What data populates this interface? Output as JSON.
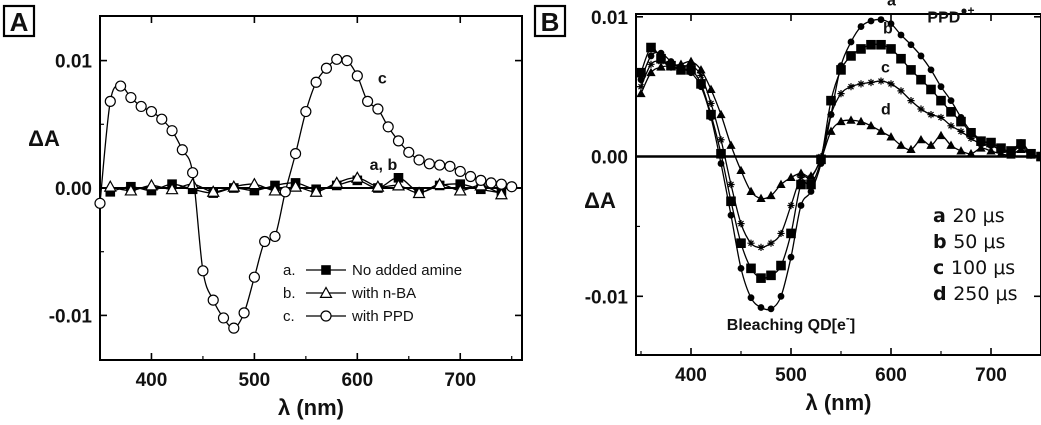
{
  "chart_data": [
    {
      "type": "line",
      "panel_label": "A",
      "xlabel": "λ (nm)",
      "ylabel": "ΔA",
      "xlim": [
        350,
        760
      ],
      "ylim": [
        -0.0135,
        0.0135
      ],
      "x_ticks": [
        400,
        500,
        600,
        700
      ],
      "x_tick_labels": [
        "400",
        "500",
        "600",
        "700"
      ],
      "y_ticks": [
        -0.01,
        0,
        0.01
      ],
      "y_tick_labels": [
        "-0.01",
        "0.00",
        "0.01"
      ],
      "series": [
        {
          "name": "No added amine",
          "legend_letter": "a.",
          "marker": "filled-square",
          "x": [
            360,
            380,
            400,
            420,
            440,
            460,
            480,
            500,
            520,
            540,
            560,
            580,
            600,
            620,
            640,
            660,
            680,
            700,
            720,
            740
          ],
          "y": [
            -0.0003,
            0.0001,
            -0.0002,
            0.0003,
            -0.0001,
            -0.0004,
            0.0,
            -0.0002,
            0.0002,
            0.0004,
            -0.0001,
            0.0002,
            0.0006,
            0.0,
            0.0008,
            -0.0003,
            0.0002,
            0.0003,
            -0.0001,
            -0.0004
          ]
        },
        {
          "name": "with n-BA",
          "legend_letter": "b.",
          "marker": "open-triangle",
          "x": [
            360,
            380,
            400,
            420,
            440,
            460,
            480,
            500,
            520,
            540,
            560,
            580,
            600,
            620,
            640,
            660,
            680,
            700,
            720,
            740
          ],
          "y": [
            0.0001,
            -0.0002,
            0.0002,
            -0.0001,
            0.0003,
            -0.0003,
            0.0001,
            0.0003,
            -0.0002,
            0.0001,
            -0.0003,
            0.0004,
            0.0008,
            0.0001,
            0.0002,
            -0.0004,
            0.0003,
            -0.0002,
            0.0002,
            -0.0005
          ]
        },
        {
          "name": "with PPD",
          "legend_letter": "c.",
          "marker": "open-circle",
          "x": [
            350,
            360,
            370,
            380,
            390,
            400,
            410,
            420,
            430,
            440,
            450,
            460,
            470,
            480,
            490,
            500,
            510,
            520,
            530,
            540,
            550,
            560,
            570,
            580,
            590,
            600,
            610,
            620,
            630,
            640,
            650,
            660,
            670,
            680,
            690,
            700,
            710,
            720,
            730,
            740,
            750
          ],
          "y": [
            -0.0012,
            0.0068,
            0.008,
            0.0071,
            0.0064,
            0.006,
            0.0054,
            0.0045,
            0.003,
            0.0012,
            -0.0065,
            -0.0088,
            -0.0102,
            -0.011,
            -0.0098,
            -0.007,
            -0.0042,
            -0.0038,
            -0.0003,
            0.0027,
            0.006,
            0.0083,
            0.0094,
            0.0101,
            0.01,
            0.0088,
            0.0068,
            0.0062,
            0.0048,
            0.0037,
            0.0028,
            0.0022,
            0.0019,
            0.0018,
            0.0017,
            0.0013,
            0.0009,
            0.0006,
            0.0004,
            0.0003,
            0.0001
          ]
        }
      ],
      "annotations": [
        {
          "text": "c",
          "x": 620,
          "y": 0.0082
        },
        {
          "text": "a, b",
          "x": 612,
          "y": 0.0014
        }
      ],
      "legend_placement": "bottom-right"
    },
    {
      "type": "line",
      "panel_label": "B",
      "xlabel": "λ (nm)",
      "ylabel": "ΔA",
      "xlim": [
        345,
        750
      ],
      "ylim": [
        -0.0142,
        0.0102
      ],
      "x_ticks": [
        400,
        500,
        600,
        700
      ],
      "x_tick_labels": [
        "400",
        "500",
        "600",
        "700"
      ],
      "y_ticks": [
        -0.01,
        0,
        0.01
      ],
      "y_tick_labels": [
        "-0.01",
        "0.00",
        "0.01"
      ],
      "series": [
        {
          "name": "20 μs",
          "legend_letter": "a",
          "marker": "filled-circle",
          "x": [
            350,
            360,
            370,
            380,
            390,
            400,
            410,
            420,
            430,
            440,
            450,
            460,
            470,
            480,
            490,
            500,
            510,
            520,
            530,
            540,
            550,
            560,
            570,
            580,
            590,
            600,
            610,
            620,
            630,
            640,
            650,
            660,
            670,
            680,
            690,
            700,
            710,
            720,
            730,
            740,
            750
          ],
          "y": [
            0.0055,
            0.0072,
            0.0074,
            0.0068,
            0.0063,
            0.006,
            0.005,
            0.0028,
            -0.0005,
            -0.0042,
            -0.008,
            -0.0101,
            -0.0108,
            -0.0109,
            -0.01,
            -0.0072,
            -0.0035,
            -0.0025,
            -0.0005,
            0.003,
            0.0065,
            0.0082,
            0.0093,
            0.0097,
            0.0098,
            0.0095,
            0.0087,
            0.008,
            0.0072,
            0.0062,
            0.005,
            0.004,
            0.0028,
            0.0018,
            0.0012,
            0.0008,
            0.0005,
            0.0003,
            0.001,
            0.0002,
            0.0
          ]
        },
        {
          "name": "50 μs",
          "legend_letter": "b",
          "marker": "filled-square",
          "x": [
            350,
            360,
            370,
            380,
            390,
            400,
            410,
            420,
            430,
            440,
            450,
            460,
            470,
            480,
            490,
            500,
            510,
            520,
            530,
            540,
            550,
            560,
            570,
            580,
            590,
            600,
            610,
            620,
            630,
            640,
            650,
            660,
            670,
            680,
            690,
            700,
            710,
            720,
            730,
            740,
            750
          ],
          "y": [
            0.006,
            0.0078,
            0.007,
            0.0065,
            0.0062,
            0.0062,
            0.0052,
            0.003,
            0.0002,
            -0.0032,
            -0.0062,
            -0.008,
            -0.0087,
            -0.0085,
            -0.0078,
            -0.0055,
            -0.002,
            -0.002,
            -0.0002,
            0.004,
            0.0062,
            0.0072,
            0.0077,
            0.008,
            0.008,
            0.0077,
            0.007,
            0.0062,
            0.0055,
            0.0048,
            0.004,
            0.0032,
            0.0025,
            0.0017,
            0.0011,
            0.001,
            0.0006,
            0.0004,
            0.0009,
            0.0002,
            0.0
          ]
        },
        {
          "name": "100 μs",
          "legend_letter": "c",
          "marker": "star",
          "x": [
            350,
            360,
            370,
            380,
            390,
            400,
            410,
            420,
            430,
            440,
            450,
            460,
            470,
            480,
            490,
            500,
            510,
            520,
            530,
            540,
            550,
            560,
            570,
            580,
            590,
            600,
            610,
            620,
            630,
            640,
            650,
            660,
            670,
            680,
            690,
            700,
            710,
            720,
            730,
            740,
            750
          ],
          "y": [
            0.005,
            0.0066,
            0.0068,
            0.0064,
            0.0064,
            0.0065,
            0.0058,
            0.0038,
            0.0012,
            -0.002,
            -0.0048,
            -0.0062,
            -0.0065,
            -0.0062,
            -0.0055,
            -0.0035,
            -0.0015,
            -0.0015,
            0.0,
            0.003,
            0.0045,
            0.005,
            0.0052,
            0.0053,
            0.0054,
            0.0052,
            0.0047,
            0.004,
            0.0034,
            0.003,
            0.0028,
            0.0022,
            0.0018,
            0.0013,
            0.0009,
            0.0008,
            0.0005,
            0.0003,
            0.0007,
            0.0001,
            0.0
          ]
        },
        {
          "name": "250 μs",
          "legend_letter": "d",
          "marker": "filled-triangle",
          "x": [
            350,
            360,
            370,
            380,
            390,
            400,
            410,
            420,
            430,
            440,
            450,
            460,
            470,
            480,
            490,
            500,
            510,
            520,
            530,
            540,
            550,
            560,
            570,
            580,
            590,
            600,
            610,
            620,
            630,
            640,
            650,
            660,
            670,
            680,
            690,
            700,
            710,
            720,
            730,
            740,
            750
          ],
          "y": [
            0.0045,
            0.006,
            0.0064,
            0.0065,
            0.0066,
            0.0068,
            0.0062,
            0.0048,
            0.003,
            0.0008,
            -0.001,
            -0.0025,
            -0.003,
            -0.0028,
            -0.002,
            -0.0015,
            -0.0012,
            -0.0014,
            -0.0002,
            0.0018,
            0.0025,
            0.0026,
            0.0025,
            0.0022,
            0.0018,
            0.0014,
            0.0008,
            0.0005,
            0.0012,
            0.0008,
            0.0015,
            0.0008,
            0.0004,
            0.0002,
            0.0006,
            0.0004,
            0.0002,
            0.0001,
            0.0005,
            0.0001,
            0.0
          ]
        }
      ],
      "annotations": [
        {
          "text": "a",
          "x": 596,
          "y": 0.0108
        },
        {
          "text": "b",
          "x": 592,
          "y": 0.0088
        },
        {
          "text": "c",
          "x": 590,
          "y": 0.006
        },
        {
          "text": "d",
          "x": 590,
          "y": 0.003
        },
        {
          "text": "PPD",
          "superscript": "●+",
          "x": 660,
          "y": 0.0096
        },
        {
          "text": "Bleaching QD[e",
          "superscript": "-",
          "suffix": "]",
          "x": 500,
          "y": -0.0124
        }
      ],
      "legend_placement": "lower-right"
    }
  ]
}
